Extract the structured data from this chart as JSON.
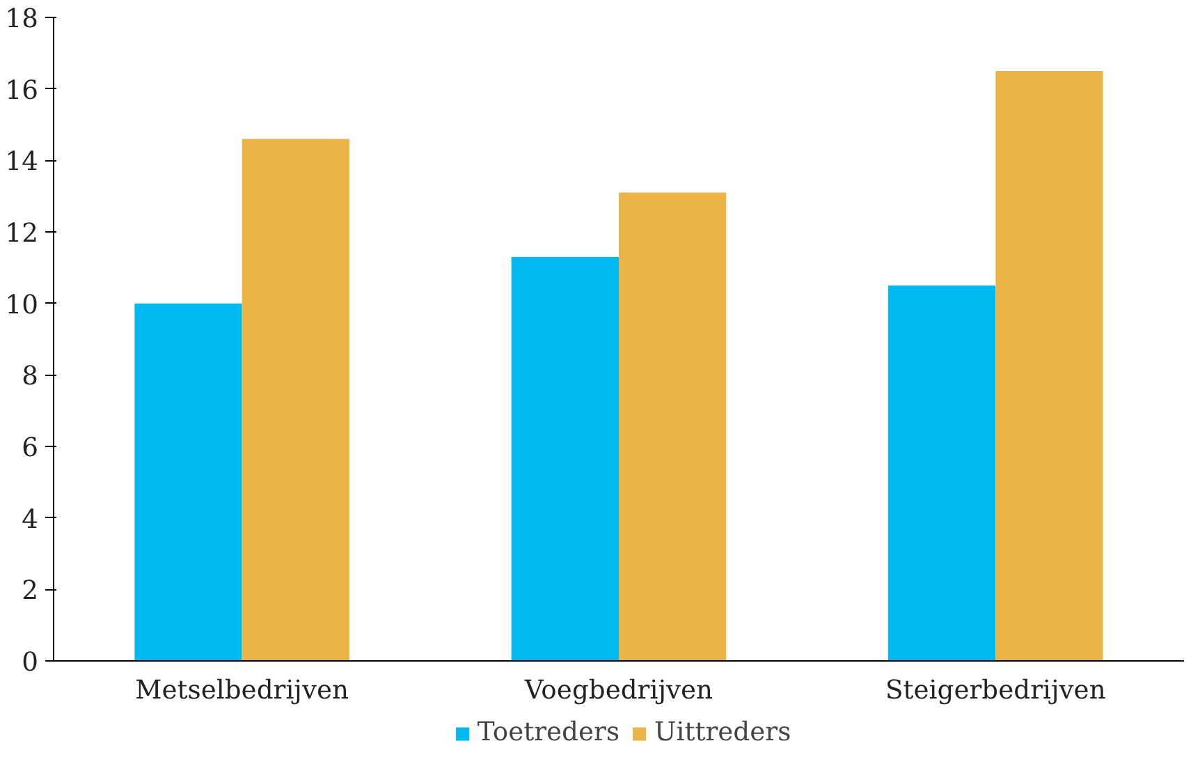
{
  "chart_data": {
    "type": "bar",
    "categories": [
      "Metselbedrijven",
      "Voegbedrijven",
      "Steigerbedrijven"
    ],
    "series": [
      {
        "name": "Toetreders",
        "color": "#00b9f1",
        "values": [
          10.0,
          11.3,
          10.5
        ]
      },
      {
        "name": "Uittreders",
        "color": "#ebb447",
        "values": [
          14.6,
          13.1,
          16.5
        ]
      }
    ],
    "ylim": [
      0,
      18
    ],
    "yticks": [
      0,
      2,
      4,
      6,
      8,
      10,
      12,
      14,
      16,
      18
    ],
    "grid": false,
    "legend": "bottom"
  }
}
